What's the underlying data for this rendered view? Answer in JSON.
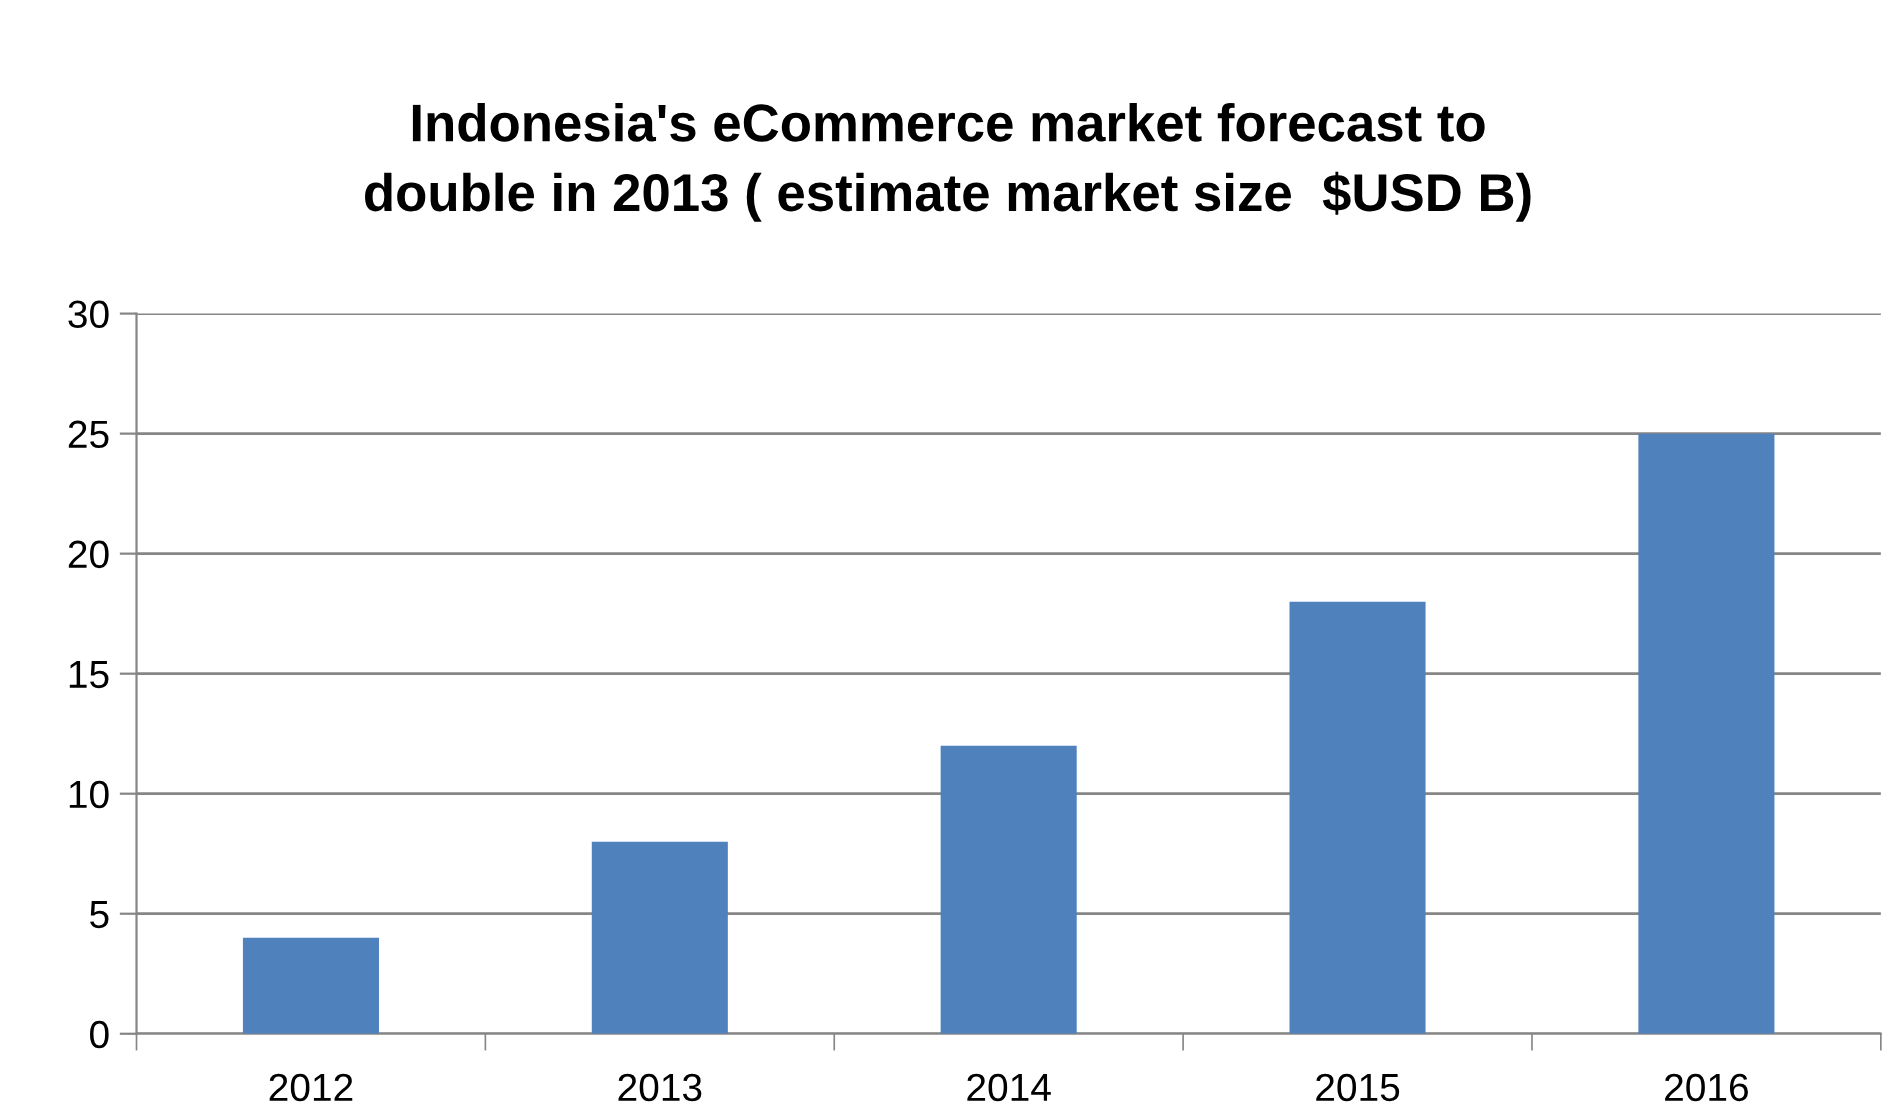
{
  "chart_data": {
    "type": "bar",
    "title": "Indonesia's eCommerce market forecast to\ndouble in 2013 ( estimate market size  $USD B)",
    "categories": [
      "2012",
      "2013",
      "2014",
      "2015",
      "2016"
    ],
    "values": [
      4,
      8,
      12,
      18,
      25
    ],
    "color": "#4f81bd",
    "ylim": [
      0,
      30
    ],
    "yticks": [
      0,
      5,
      10,
      15,
      20,
      25,
      30
    ],
    "grid": "y",
    "legend": false
  }
}
